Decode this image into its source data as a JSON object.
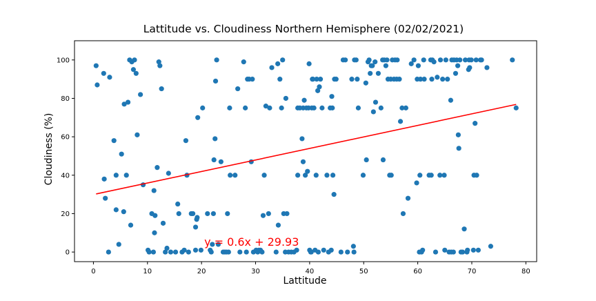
{
  "chart_data": {
    "type": "scatter",
    "title": "Lattitude vs. Cloudiness Northern Hemisphere (02/02/2021)",
    "xlabel": "Lattitude",
    "ylabel": "Cloudiness (%)",
    "xlim": [
      -3.5,
      82
    ],
    "ylim": [
      -5,
      110
    ],
    "xticks": [
      0,
      10,
      20,
      30,
      40,
      50,
      60,
      70,
      80
    ],
    "yticks": [
      0,
      20,
      40,
      60,
      80,
      100
    ],
    "grid": false,
    "colors": {
      "points": "#1f77b4",
      "regression": "#ff0000",
      "axis": "#000000"
    },
    "regression": {
      "slope": 0.6,
      "intercept": 29.93,
      "x_range": [
        0.5,
        78.2
      ],
      "equation": "y = 0.6x + 29.93",
      "annotation_position": [
        20.5,
        5.5
      ]
    },
    "points": [
      [
        0.5,
        97
      ],
      [
        0.7,
        87
      ],
      [
        1.9,
        93
      ],
      [
        2.0,
        38
      ],
      [
        2.2,
        28
      ],
      [
        2.8,
        0
      ],
      [
        3.0,
        91
      ],
      [
        3.8,
        58
      ],
      [
        4.2,
        40
      ],
      [
        4.2,
        22
      ],
      [
        4.7,
        4
      ],
      [
        5.2,
        51
      ],
      [
        5.6,
        21
      ],
      [
        5.7,
        77
      ],
      [
        6.1,
        40
      ],
      [
        6.4,
        78
      ],
      [
        6.7,
        100
      ],
      [
        6.9,
        14
      ],
      [
        7.1,
        99
      ],
      [
        7.4,
        95
      ],
      [
        7.6,
        100
      ],
      [
        7.9,
        93
      ],
      [
        8.1,
        61
      ],
      [
        8.7,
        82
      ],
      [
        9.2,
        35
      ],
      [
        10.1,
        1
      ],
      [
        10.3,
        0
      ],
      [
        10.8,
        20
      ],
      [
        11.1,
        0
      ],
      [
        11.3,
        10
      ],
      [
        11.2,
        32
      ],
      [
        11.4,
        19
      ],
      [
        11.8,
        44
      ],
      [
        12.1,
        99
      ],
      [
        12.3,
        97
      ],
      [
        12.6,
        85
      ],
      [
        12.9,
        15
      ],
      [
        13.3,
        0
      ],
      [
        13.6,
        2
      ],
      [
        13.9,
        41
      ],
      [
        14.3,
        0
      ],
      [
        15.2,
        0
      ],
      [
        15.6,
        25
      ],
      [
        15.8,
        20
      ],
      [
        16.4,
        0
      ],
      [
        16.8,
        1
      ],
      [
        17.1,
        58
      ],
      [
        17.3,
        40
      ],
      [
        17.6,
        0
      ],
      [
        18.1,
        20
      ],
      [
        18.4,
        20
      ],
      [
        18.9,
        1
      ],
      [
        18.9,
        13
      ],
      [
        19.1,
        17
      ],
      [
        19.2,
        18
      ],
      [
        19.3,
        70
      ],
      [
        19.9,
        1
      ],
      [
        20.2,
        75
      ],
      [
        21.1,
        20
      ],
      [
        21.6,
        1
      ],
      [
        21.8,
        0
      ],
      [
        22.0,
        4
      ],
      [
        22.2,
        20
      ],
      [
        22.3,
        48
      ],
      [
        22.5,
        59
      ],
      [
        22.6,
        89
      ],
      [
        22.8,
        100
      ],
      [
        23.1,
        4
      ],
      [
        23.6,
        47
      ],
      [
        24.0,
        0
      ],
      [
        24.3,
        0
      ],
      [
        24.6,
        0
      ],
      [
        24.8,
        20
      ],
      [
        25.0,
        0
      ],
      [
        25.2,
        75
      ],
      [
        25.3,
        40
      ],
      [
        26.2,
        40
      ],
      [
        26.7,
        85
      ],
      [
        27.1,
        0
      ],
      [
        27.8,
        99
      ],
      [
        28.1,
        75
      ],
      [
        28.3,
        0
      ],
      [
        28.5,
        90
      ],
      [
        28.8,
        90
      ],
      [
        29.2,
        47
      ],
      [
        29.4,
        90
      ],
      [
        29.6,
        0
      ],
      [
        30.1,
        1
      ],
      [
        30.4,
        0
      ],
      [
        30.6,
        1
      ],
      [
        30.9,
        1
      ],
      [
        31.2,
        0
      ],
      [
        31.4,
        19
      ],
      [
        31.6,
        40
      ],
      [
        31.9,
        76
      ],
      [
        32.4,
        20
      ],
      [
        32.6,
        75
      ],
      [
        33.0,
        96
      ],
      [
        33.8,
        0
      ],
      [
        34.1,
        98
      ],
      [
        34.2,
        14
      ],
      [
        34.5,
        90
      ],
      [
        34.8,
        75
      ],
      [
        35.0,
        100
      ],
      [
        35.2,
        20
      ],
      [
        35.5,
        0
      ],
      [
        35.6,
        80
      ],
      [
        35.8,
        20
      ],
      [
        36.1,
        0
      ],
      [
        36.6,
        0
      ],
      [
        37.1,
        0
      ],
      [
        37.6,
        1
      ],
      [
        37.8,
        40
      ],
      [
        37.8,
        75
      ],
      [
        38.2,
        75
      ],
      [
        38.6,
        59
      ],
      [
        38.8,
        47
      ],
      [
        38.8,
        75
      ],
      [
        39.0,
        79
      ],
      [
        39.2,
        40
      ],
      [
        39.4,
        75
      ],
      [
        39.6,
        42
      ],
      [
        39.8,
        75
      ],
      [
        39.9,
        98
      ],
      [
        40.0,
        1
      ],
      [
        40.2,
        0
      ],
      [
        40.3,
        0
      ],
      [
        40.4,
        75
      ],
      [
        40.5,
        90
      ],
      [
        40.6,
        90
      ],
      [
        40.8,
        75
      ],
      [
        41.0,
        1
      ],
      [
        41.2,
        40
      ],
      [
        41.3,
        90
      ],
      [
        41.5,
        84
      ],
      [
        41.6,
        0
      ],
      [
        41.8,
        86
      ],
      [
        42.0,
        90
      ],
      [
        42.3,
        75
      ],
      [
        42.6,
        1
      ],
      [
        43.2,
        40
      ],
      [
        43.5,
        0
      ],
      [
        43.8,
        75
      ],
      [
        44.0,
        1
      ],
      [
        44.1,
        81
      ],
      [
        44.2,
        75
      ],
      [
        44.3,
        40
      ],
      [
        44.5,
        30
      ],
      [
        44.6,
        90
      ],
      [
        44.9,
        90
      ],
      [
        45.8,
        0
      ],
      [
        46.2,
        100
      ],
      [
        46.6,
        100
      ],
      [
        47.0,
        0
      ],
      [
        47.8,
        90
      ],
      [
        48.1,
        3
      ],
      [
        48.2,
        0
      ],
      [
        48.3,
        100
      ],
      [
        48.6,
        100
      ],
      [
        48.8,
        90
      ],
      [
        49.0,
        75
      ],
      [
        49.9,
        40
      ],
      [
        50.4,
        88
      ],
      [
        50.5,
        48
      ],
      [
        50.8,
        99
      ],
      [
        51.0,
        100
      ],
      [
        51.2,
        93
      ],
      [
        51.4,
        97
      ],
      [
        51.6,
        97
      ],
      [
        51.8,
        73
      ],
      [
        52.1,
        99
      ],
      [
        52.2,
        78
      ],
      [
        52.7,
        93
      ],
      [
        53.2,
        75
      ],
      [
        53.5,
        100
      ],
      [
        53.6,
        48
      ],
      [
        53.8,
        100
      ],
      [
        54.1,
        97
      ],
      [
        54.3,
        100
      ],
      [
        54.5,
        90
      ],
      [
        54.8,
        40
      ],
      [
        55.0,
        90
      ],
      [
        55.1,
        40
      ],
      [
        55.3,
        100
      ],
      [
        55.6,
        90
      ],
      [
        55.8,
        100
      ],
      [
        56.1,
        90
      ],
      [
        56.2,
        100
      ],
      [
        56.6,
        90
      ],
      [
        56.8,
        68
      ],
      [
        57.1,
        75
      ],
      [
        57.3,
        20
      ],
      [
        57.8,
        75
      ],
      [
        58.2,
        28
      ],
      [
        58.8,
        98
      ],
      [
        59.3,
        100
      ],
      [
        59.8,
        36
      ],
      [
        59.9,
        90
      ],
      [
        60.1,
        97
      ],
      [
        60.3,
        0
      ],
      [
        60.4,
        40
      ],
      [
        60.5,
        90
      ],
      [
        60.7,
        0
      ],
      [
        60.9,
        1
      ],
      [
        61.1,
        100
      ],
      [
        61.2,
        90
      ],
      [
        62.1,
        40
      ],
      [
        62.4,
        100
      ],
      [
        62.5,
        40
      ],
      [
        62.6,
        90
      ],
      [
        62.7,
        100
      ],
      [
        63.0,
        99
      ],
      [
        63.3,
        0
      ],
      [
        63.6,
        91
      ],
      [
        64.1,
        40
      ],
      [
        64.2,
        100
      ],
      [
        64.6,
        90
      ],
      [
        64.9,
        40
      ],
      [
        65.0,
        1
      ],
      [
        65.2,
        100
      ],
      [
        65.5,
        90
      ],
      [
        65.8,
        0
      ],
      [
        66.1,
        79
      ],
      [
        66.2,
        0
      ],
      [
        66.3,
        100
      ],
      [
        66.6,
        0
      ],
      [
        66.7,
        100
      ],
      [
        67.0,
        93
      ],
      [
        67.2,
        100
      ],
      [
        67.4,
        97
      ],
      [
        67.5,
        61
      ],
      [
        67.6,
        54
      ],
      [
        67.8,
        100
      ],
      [
        68.0,
        0
      ],
      [
        68.3,
        0
      ],
      [
        68.6,
        12
      ],
      [
        68.8,
        100
      ],
      [
        69.1,
        0
      ],
      [
        69.2,
        1
      ],
      [
        69.4,
        95
      ],
      [
        69.5,
        100
      ],
      [
        69.6,
        96
      ],
      [
        69.9,
        100
      ],
      [
        70.3,
        1
      ],
      [
        70.4,
        40
      ],
      [
        70.6,
        67
      ],
      [
        70.8,
        100
      ],
      [
        70.9,
        40
      ],
      [
        71.2,
        1
      ],
      [
        71.6,
        100
      ],
      [
        71.8,
        100
      ],
      [
        72.8,
        96
      ],
      [
        73.5,
        3
      ],
      [
        77.5,
        100
      ],
      [
        78.2,
        75
      ]
    ]
  }
}
